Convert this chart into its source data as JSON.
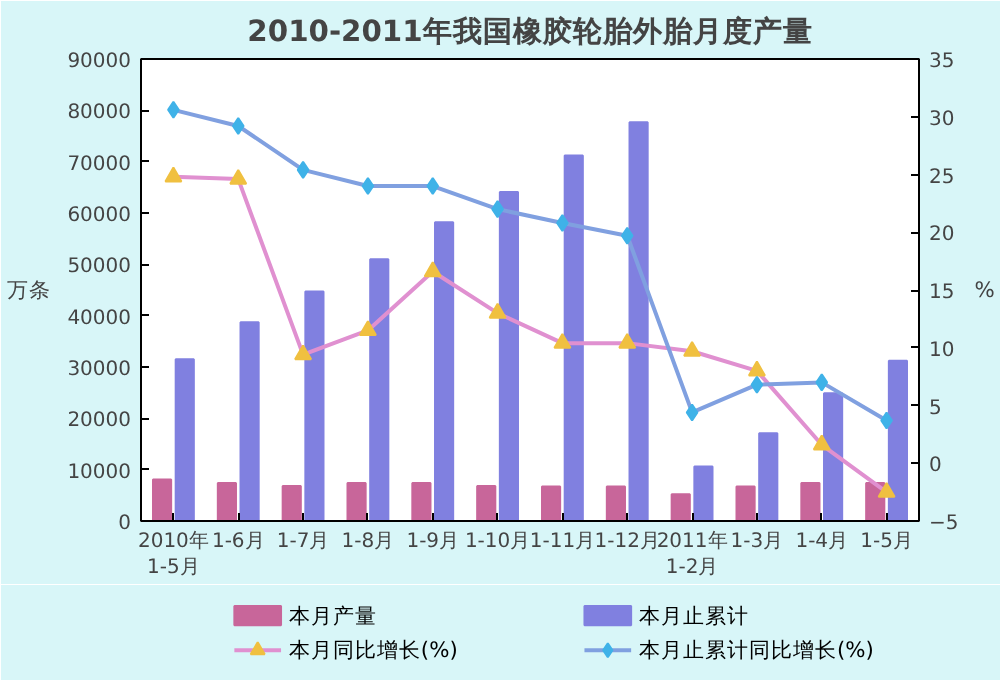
{
  "chart_data": {
    "type": "bar",
    "title": "2010-2011年我国橡胶轮胎外胎月度产量",
    "ylabel": "万条",
    "y2label": "%",
    "categories": [
      "2010年1-5月",
      "1-6月",
      "1-7月",
      "1-8月",
      "1-9月",
      "1-10月",
      "1-11月",
      "1-12月",
      "2011年1-2月",
      "1-3月",
      "1-4月",
      "1-5月"
    ],
    "series": [
      {
        "name": "本月产量",
        "color": "#c8669a",
        "values": [
          8100,
          7400,
          6800,
          7400,
          7400,
          6800,
          6700,
          6700,
          5200,
          6700,
          7400,
          7400
        ]
      },
      {
        "name": "本月止累计",
        "color": "#8080e0",
        "values": [
          31500,
          38700,
          44700,
          51000,
          58200,
          64100,
          71200,
          77700,
          10600,
          17100,
          24900,
          31200
        ]
      },
      {
        "name": "本月同比增长(%)",
        "type": "line",
        "axis": "y2",
        "color": "#e090d0",
        "marker": "triangle",
        "values": [
          24.8,
          24.6,
          9.4,
          11.5,
          16.6,
          13,
          10.4,
          10.4,
          9.7,
          8.0,
          1.6,
          -2.5
        ]
      },
      {
        "name": "本月止累计同比增长(%)",
        "type": "line",
        "axis": "y2",
        "color": "#80a0e0",
        "marker": "diamond",
        "values": [
          30.6,
          29.2,
          25.4,
          24,
          24,
          22,
          20.8,
          19.7,
          4.4,
          6.8,
          7,
          3.7
        ]
      }
    ],
    "ylim": [
      0,
      90000
    ],
    "yticks": [
      0,
      10000,
      20000,
      30000,
      40000,
      50000,
      60000,
      70000,
      80000,
      90000
    ],
    "y2lim": [
      -5,
      35
    ],
    "y2ticks": [
      -5,
      0,
      5,
      10,
      15,
      20,
      25,
      30,
      35
    ],
    "grid": false,
    "legend": "bottom"
  }
}
